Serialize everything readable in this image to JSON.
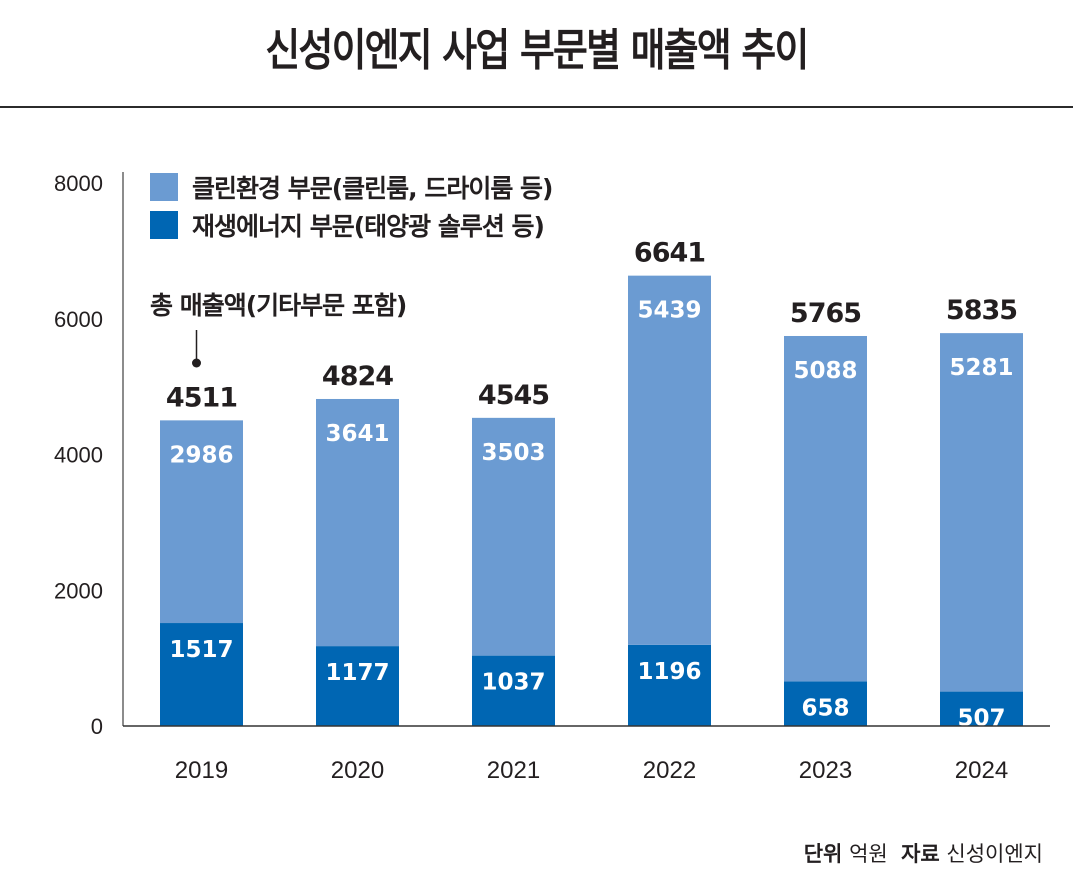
{
  "title": "신성이엔지 사업 부문별 매출액 추이",
  "legend": [
    {
      "label": "클린환경 부문(클린룸, 드라이룸 등)",
      "color": "#6b9bd2"
    },
    {
      "label": "재생에너지 부문(태양광 솔루션 등)",
      "color": "#0066b3"
    }
  ],
  "annotation": "총 매출액(기타부문 포함)",
  "footer": {
    "unit_label": "단위",
    "unit_value": "억원",
    "source_label": "자료",
    "source_value": "신성이엔지"
  },
  "chart_data": {
    "type": "bar",
    "stacked": true,
    "title": "신성이엔지 사업 부문별 매출액 추이",
    "xlabel": "",
    "ylabel": "",
    "unit": "억원",
    "categories": [
      "2019",
      "2020",
      "2021",
      "2022",
      "2023",
      "2024"
    ],
    "series": [
      {
        "name": "재생에너지 부문(태양광 솔루션 등)",
        "color": "#0066b3",
        "values": [
          1517,
          1177,
          1037,
          1196,
          658,
          507
        ]
      },
      {
        "name": "클린환경 부문(클린룸, 드라이룸 등)",
        "color": "#6b9bd2",
        "values": [
          2986,
          3641,
          3503,
          5439,
          5088,
          5281
        ]
      }
    ],
    "totals": [
      4511,
      4824,
      4545,
      6641,
      5765,
      5835
    ],
    "totals_label": "총 매출액(기타부문 포함)",
    "ylim": [
      0,
      8000
    ],
    "yticks": [
      0,
      2000,
      4000,
      6000,
      8000
    ],
    "grid": false,
    "legend_position": "top-left"
  }
}
